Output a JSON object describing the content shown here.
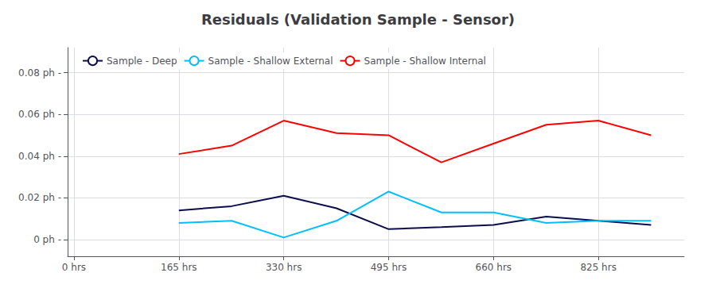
{
  "chart_data": {
    "type": "line",
    "title": "Residuals (Validation Sample - Sensor)",
    "x": [
      165,
      248,
      330,
      413,
      495,
      578,
      660,
      743,
      825,
      908
    ],
    "series": [
      {
        "name": "Sample - Deep",
        "color": "#0d0d4d",
        "values": [
          0.014,
          0.016,
          0.021,
          0.015,
          0.005,
          0.006,
          0.007,
          0.011,
          0.009,
          0.007
        ]
      },
      {
        "name": "Sample - Shallow External",
        "color": "#00bfff",
        "values": [
          0.008,
          0.009,
          0.001,
          0.009,
          0.023,
          0.013,
          0.013,
          0.008,
          0.009,
          0.009
        ]
      },
      {
        "name": "Sample - Shallow Internal",
        "color": "#ff0000",
        "values": [
          0.041,
          0.045,
          0.057,
          0.051,
          0.05,
          0.037,
          0.046,
          0.055,
          0.057,
          0.05
        ]
      }
    ],
    "xlim": [
      -10,
      960
    ],
    "xticks": [
      {
        "value": 0,
        "label": "0 hrs"
      },
      {
        "value": 165,
        "label": "165 hrs"
      },
      {
        "value": 330,
        "label": "330 hrs"
      },
      {
        "value": 495,
        "label": "495 hrs"
      },
      {
        "value": 660,
        "label": "660 hrs"
      },
      {
        "value": 825,
        "label": "825 hrs"
      }
    ],
    "ylim": [
      -0.008,
      0.092
    ],
    "yticks": [
      {
        "value": 0,
        "label": "0 ph -"
      },
      {
        "value": 0.02,
        "label": "0.02 ph -"
      },
      {
        "value": 0.04,
        "label": "0.04 ph -"
      },
      {
        "value": 0.06,
        "label": "0.06 ph -"
      },
      {
        "value": 0.08,
        "label": "0.08 ph -"
      }
    ],
    "grid": true,
    "legend": "upper left"
  }
}
